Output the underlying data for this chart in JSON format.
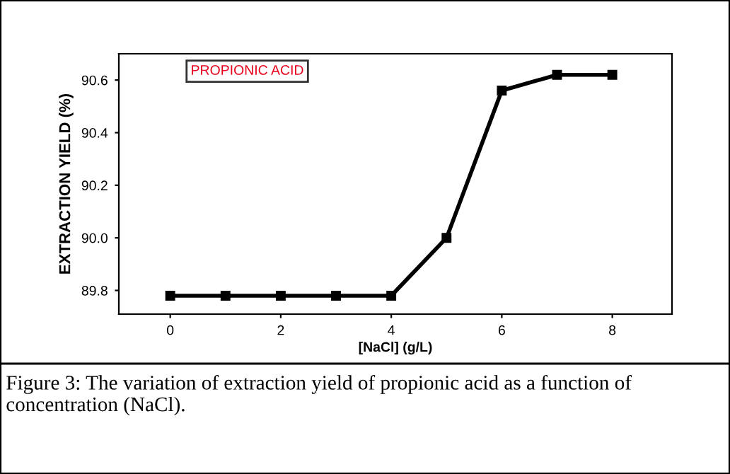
{
  "chart_data": {
    "type": "line",
    "xlabel": "[NaCl] (g/L)",
    "ylabel": "EXTRACTION YIELD (%)",
    "x": [
      0,
      1,
      2,
      3,
      4,
      5,
      6,
      7,
      8
    ],
    "series": [
      {
        "name": "PROPIONIC ACID",
        "color": "#000000",
        "values": [
          89.78,
          89.78,
          89.78,
          89.78,
          89.78,
          90.0,
          90.56,
          90.62,
          90.62
        ]
      }
    ],
    "xlim": [
      -0.93,
      9.08
    ],
    "xticks": [
      0,
      2,
      4,
      6,
      8
    ],
    "ylim": [
      89.71,
      90.7
    ],
    "yticks": [
      89.8,
      {
        "value": 90.0,
        "label": "90.0"
      },
      90.2,
      90.4,
      90.6
    ],
    "marker": "square",
    "line_style": "solid",
    "grid": false,
    "legend": "top left",
    "annotations": [
      "Figure 3: The variation of extraction yield of propionic acid as a function of concentration (NaCl)."
    ]
  }
}
